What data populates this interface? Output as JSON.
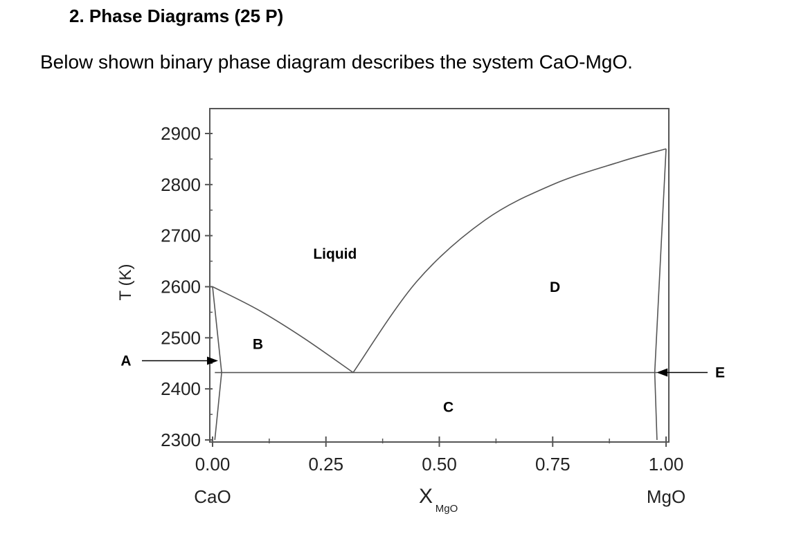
{
  "heading": "2.  Phase Diagrams (25 P)",
  "intro": "Below shown binary phase diagram describes the system CaO-MgO.",
  "chart_data": {
    "type": "line",
    "xlim": [
      0,
      1
    ],
    "ylim": [
      2300,
      2900
    ],
    "x_ticks": [
      "0.00",
      "0.25",
      "0.50",
      "0.75",
      "1.00"
    ],
    "y_ticks": [
      "2900",
      "2800",
      "2700",
      "2600",
      "2500",
      "2400",
      "2300"
    ],
    "ylabel": "T (K)",
    "xlabel_main": "X",
    "xlabel_sub": "MgO",
    "x_left_component": "CaO",
    "x_right_component": "MgO",
    "series": [
      {
        "x": [
          0.0,
          0.1,
          0.2,
          0.31
        ],
        "y": [
          2600,
          2555,
          2500,
          2432
        ]
      },
      {
        "x": [
          0.31,
          0.45,
          0.6,
          0.75,
          0.9,
          1.0
        ],
        "y": [
          2432,
          2610,
          2730,
          2800,
          2845,
          2870
        ]
      },
      {
        "x": [
          0.005,
          0.98
        ],
        "y": [
          2432,
          2432
        ]
      },
      {
        "x": [
          0.0,
          0.02,
          0.005
        ],
        "y": [
          2600,
          2432,
          2300
        ]
      },
      {
        "x": [
          1.0,
          0.975,
          0.98
        ],
        "y": [
          2870,
          2432,
          2300
        ]
      }
    ],
    "eutectic": {
      "x": 0.31,
      "y": 2432
    },
    "region_labels": [
      {
        "text": "Liquid",
        "x": 0.27,
        "y": 2655
      },
      {
        "text": "B",
        "x": 0.1,
        "y": 2478
      },
      {
        "text": "C",
        "x": 0.52,
        "y": 2355
      },
      {
        "text": "D",
        "x": 0.755,
        "y": 2590
      }
    ],
    "pointers": [
      {
        "text": "A",
        "x": 0.0,
        "y": 2455,
        "side": "left"
      },
      {
        "text": "E",
        "x": 0.985,
        "y": 2432,
        "side": "right"
      }
    ],
    "colors": {
      "axis": "#555555",
      "curve": "#555555"
    }
  }
}
